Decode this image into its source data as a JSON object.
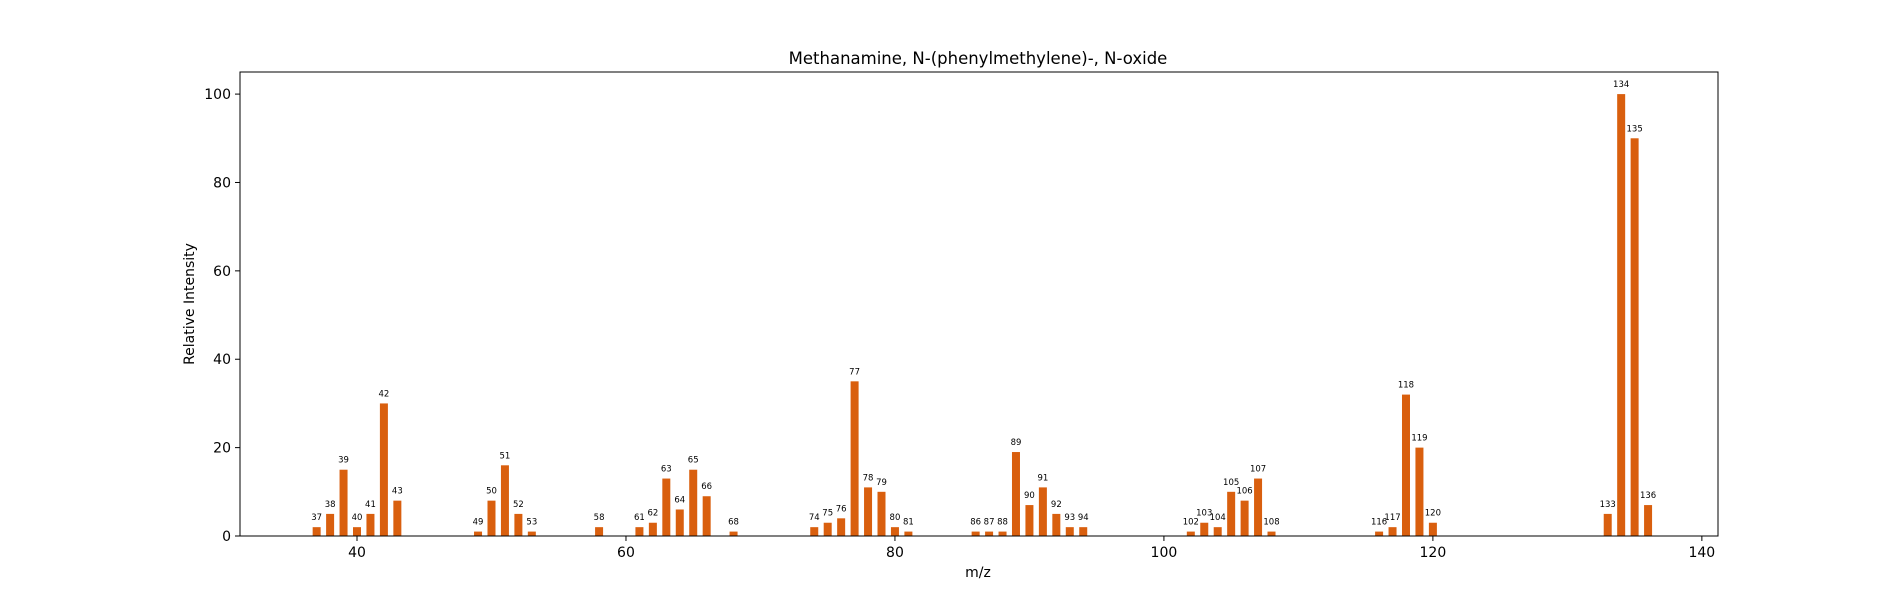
{
  "chart_data": {
    "type": "bar",
    "title": "Methanamine, N-(phenylmethylene)-, N-oxide",
    "xlabel": "m/z",
    "ylabel": "Relative Intensity",
    "xlim": [
      31.3,
      141.2
    ],
    "ylim": [
      0,
      105
    ],
    "xticks": [
      40,
      60,
      80,
      100,
      120,
      140
    ],
    "yticks": [
      0,
      20,
      40,
      60,
      80,
      100
    ],
    "grid": false,
    "legend": "none",
    "bar_color": "#d95f0e",
    "x": [
      37,
      38,
      39,
      40,
      41,
      42,
      43,
      49,
      50,
      51,
      52,
      53,
      58,
      61,
      62,
      63,
      64,
      65,
      66,
      68,
      74,
      75,
      76,
      77,
      78,
      79,
      80,
      81,
      86,
      87,
      88,
      89,
      90,
      91,
      92,
      93,
      94,
      102,
      103,
      104,
      105,
      106,
      107,
      108,
      116,
      117,
      118,
      119,
      120,
      133,
      134,
      135,
      136
    ],
    "values": [
      2,
      5,
      15,
      2,
      5,
      30,
      8,
      1,
      8,
      16,
      5,
      1,
      2,
      2,
      3,
      13,
      6,
      15,
      9,
      1,
      2,
      3,
      4,
      35,
      11,
      10,
      2,
      1,
      1,
      1,
      1,
      19,
      7,
      11,
      5,
      2,
      2,
      1,
      3,
      2,
      10,
      8,
      13,
      1,
      1,
      2,
      32,
      20,
      3,
      5,
      100,
      90,
      7
    ],
    "labels": [
      "37",
      "38",
      "39",
      "40",
      "41",
      "42",
      "43",
      "49",
      "50",
      "51",
      "52",
      "53",
      "58",
      "61",
      "62",
      "63",
      "64",
      "65",
      "66",
      "68",
      "74",
      "75",
      "76",
      "77",
      "78",
      "79",
      "80",
      "81",
      "86",
      "87",
      "88",
      "89",
      "90",
      "91",
      "92",
      "93",
      "94",
      "102",
      "103",
      "104",
      "105",
      "106",
      "107",
      "108",
      "116",
      "117",
      "118",
      "119",
      "120",
      "133",
      "134",
      "135",
      "136"
    ]
  }
}
